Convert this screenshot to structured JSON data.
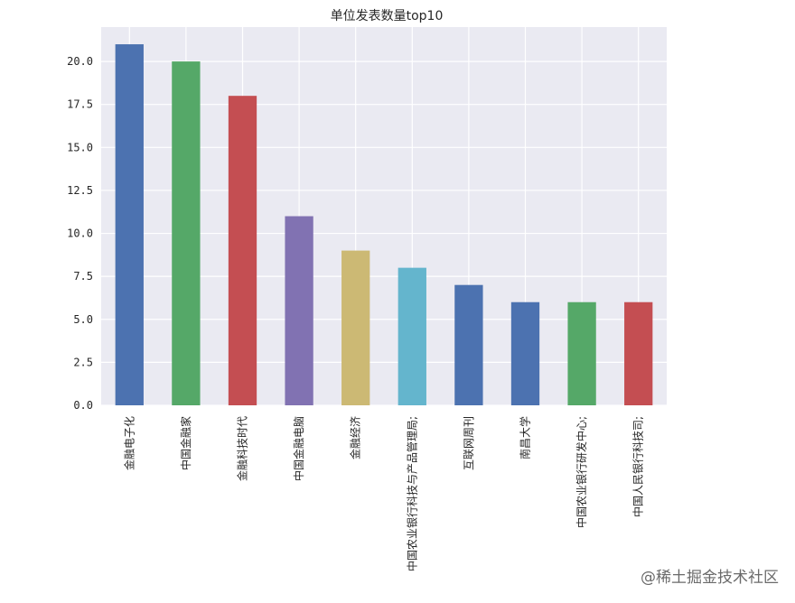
{
  "chart_data": {
    "type": "bar",
    "title": "单位发表数量top10",
    "xlabel": "",
    "ylabel": "",
    "categories": [
      "金融电子化",
      "中国金融家",
      "金融科技时代",
      "中国金融电脑",
      "金融经济",
      "中国农业银行科技与产品管理局;",
      "互联网周刊",
      "南昌大学",
      "中国农业银行研发中心;",
      "中国人民银行科技司;"
    ],
    "values": [
      21,
      20,
      18,
      11,
      9,
      8,
      7,
      6,
      6,
      6
    ],
    "colors": [
      "#4c72b0",
      "#55a868",
      "#c44e52",
      "#8172b2",
      "#ccb974",
      "#64b5cd",
      "#4c72b0",
      "#4c72b0",
      "#55a868",
      "#c44e52"
    ],
    "ylim": [
      0,
      22
    ],
    "yticks": [
      0.0,
      2.5,
      5.0,
      7.5,
      10.0,
      12.5,
      15.0,
      17.5,
      20.0
    ],
    "ytick_labels": [
      "0.0",
      "2.5",
      "5.0",
      "7.5",
      "10.0",
      "12.5",
      "15.0",
      "17.5",
      "20.0"
    ],
    "grid": true,
    "background_color": "#eaeaf2",
    "grid_color": "#ffffff"
  },
  "watermark": "@稀土掘金技术社区"
}
